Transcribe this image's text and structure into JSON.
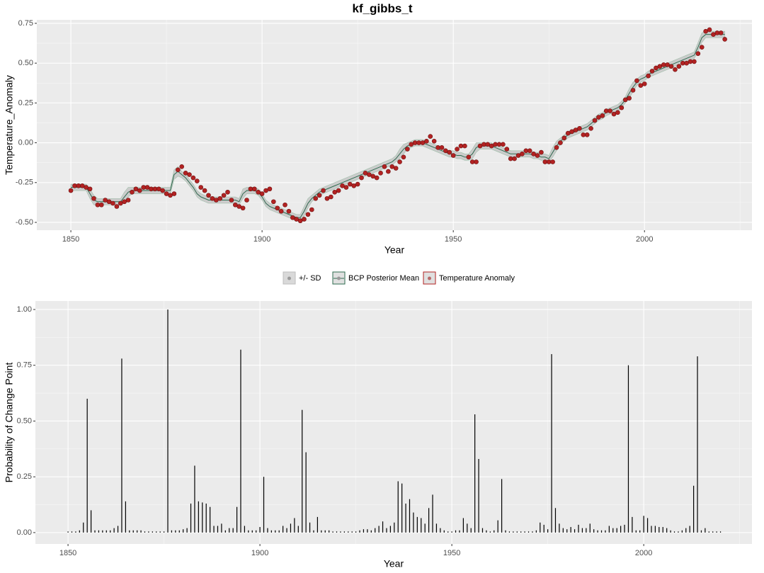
{
  "chart_data": [
    {
      "type": "line",
      "title": "kf_gibbs_t",
      "x_label": "Year",
      "y_label": "Temperature_Anomaly",
      "xlim": [
        1841.1,
        2028.1
      ],
      "xticks": [
        1850,
        1900,
        1950,
        2000
      ],
      "ylim": [
        -0.549,
        0.772
      ],
      "yticks": [
        {
          "value": -0.5,
          "label": "-0.50"
        },
        {
          "value": -0.25,
          "label": "-0.25"
        },
        {
          "value": 0,
          "label": "0.00"
        },
        {
          "value": 0.25,
          "label": "0.25"
        },
        {
          "value": 0.5,
          "label": "0.50"
        },
        {
          "value": 0.75,
          "label": "0.75"
        }
      ],
      "grid": true,
      "legend": "bottom",
      "x": [
        1850,
        1851,
        1852,
        1853,
        1854,
        1855,
        1856,
        1857,
        1858,
        1859,
        1860,
        1861,
        1862,
        1863,
        1864,
        1865,
        1866,
        1867,
        1868,
        1869,
        1870,
        1871,
        1872,
        1873,
        1874,
        1875,
        1876,
        1877,
        1878,
        1879,
        1880,
        1881,
        1882,
        1883,
        1884,
        1885,
        1886,
        1887,
        1888,
        1889,
        1890,
        1891,
        1892,
        1893,
        1894,
        1895,
        1896,
        1897,
        1898,
        1899,
        1900,
        1901,
        1902,
        1903,
        1904,
        1905,
        1906,
        1907,
        1908,
        1909,
        1910,
        1911,
        1912,
        1913,
        1914,
        1915,
        1916,
        1917,
        1918,
        1919,
        1920,
        1921,
        1922,
        1923,
        1924,
        1925,
        1926,
        1927,
        1928,
        1929,
        1930,
        1931,
        1932,
        1933,
        1934,
        1935,
        1936,
        1937,
        1938,
        1939,
        1940,
        1941,
        1942,
        1943,
        1944,
        1945,
        1946,
        1947,
        1948,
        1949,
        1950,
        1951,
        1952,
        1953,
        1954,
        1955,
        1956,
        1957,
        1958,
        1959,
        1960,
        1961,
        1962,
        1963,
        1964,
        1965,
        1966,
        1967,
        1968,
        1969,
        1970,
        1971,
        1972,
        1973,
        1974,
        1975,
        1976,
        1977,
        1978,
        1979,
        1980,
        1981,
        1982,
        1983,
        1984,
        1985,
        1986,
        1987,
        1988,
        1989,
        1990,
        1991,
        1992,
        1993,
        1994,
        1995,
        1996,
        1997,
        1998,
        1999,
        2000,
        2001,
        2002,
        2003,
        2004,
        2005,
        2006,
        2007,
        2008,
        2009,
        2010,
        2011,
        2012,
        2013,
        2014,
        2015,
        2016,
        2017,
        2018,
        2019,
        2020,
        2021
      ],
      "series": [
        {
          "name": "+/- SD",
          "color": "#bdbdbd",
          "values": [
            0.02,
            0.02,
            0.02,
            0.02,
            0.02,
            0.03,
            0.03,
            0.02,
            0.02,
            0.02,
            0.02,
            0.02,
            0.02,
            0.02,
            0.03,
            0.03,
            0.02,
            0.02,
            0.02,
            0.02,
            0.02,
            0.02,
            0.02,
            0.02,
            0.02,
            0.02,
            0.02,
            0.03,
            0.03,
            0.02,
            0.02,
            0.02,
            0.02,
            0.02,
            0.02,
            0.02,
            0.02,
            0.02,
            0.02,
            0.02,
            0.02,
            0.02,
            0.02,
            0.02,
            0.02,
            0.03,
            0.02,
            0.02,
            0.02,
            0.02,
            0.02,
            0.02,
            0.02,
            0.02,
            0.02,
            0.02,
            0.02,
            0.02,
            0.02,
            0.02,
            0.02,
            0.03,
            0.03,
            0.02,
            0.02,
            0.02,
            0.02,
            0.02,
            0.02,
            0.02,
            0.02,
            0.02,
            0.02,
            0.02,
            0.02,
            0.02,
            0.02,
            0.02,
            0.02,
            0.02,
            0.02,
            0.02,
            0.02,
            0.02,
            0.02,
            0.02,
            0.03,
            0.03,
            0.02,
            0.02,
            0.02,
            0.02,
            0.02,
            0.02,
            0.02,
            0.02,
            0.02,
            0.02,
            0.02,
            0.02,
            0.02,
            0.02,
            0.02,
            0.02,
            0.02,
            0.03,
            0.03,
            0.02,
            0.02,
            0.02,
            0.02,
            0.02,
            0.02,
            0.02,
            0.02,
            0.02,
            0.02,
            0.02,
            0.02,
            0.02,
            0.02,
            0.02,
            0.02,
            0.02,
            0.02,
            0.02,
            0.03,
            0.03,
            0.02,
            0.02,
            0.02,
            0.02,
            0.02,
            0.02,
            0.02,
            0.02,
            0.02,
            0.02,
            0.02,
            0.02,
            0.02,
            0.02,
            0.02,
            0.02,
            0.02,
            0.02,
            0.03,
            0.03,
            0.02,
            0.02,
            0.02,
            0.02,
            0.02,
            0.02,
            0.02,
            0.02,
            0.02,
            0.02,
            0.02,
            0.02,
            0.02,
            0.02,
            0.02,
            0.02,
            0.03,
            0.03,
            0.02,
            0.02,
            0.02,
            0.02,
            0.02,
            0.02
          ]
        },
        {
          "name": "BCP Posterior Mean",
          "color": "#2e6b4f",
          "values": [
            -0.28,
            -0.28,
            -0.28,
            -0.28,
            -0.28,
            -0.32,
            -0.36,
            -0.37,
            -0.37,
            -0.37,
            -0.37,
            -0.37,
            -0.37,
            -0.37,
            -0.34,
            -0.31,
            -0.3,
            -0.3,
            -0.3,
            -0.3,
            -0.3,
            -0.3,
            -0.3,
            -0.3,
            -0.3,
            -0.3,
            -0.3,
            -0.2,
            -0.18,
            -0.2,
            -0.22,
            -0.25,
            -0.28,
            -0.32,
            -0.34,
            -0.35,
            -0.36,
            -0.36,
            -0.36,
            -0.36,
            -0.36,
            -0.36,
            -0.36,
            -0.36,
            -0.37,
            -0.32,
            -0.3,
            -0.3,
            -0.3,
            -0.31,
            -0.34,
            -0.38,
            -0.4,
            -0.41,
            -0.42,
            -0.43,
            -0.44,
            -0.45,
            -0.46,
            -0.47,
            -0.47,
            -0.43,
            -0.38,
            -0.35,
            -0.33,
            -0.31,
            -0.3,
            -0.29,
            -0.28,
            -0.27,
            -0.26,
            -0.25,
            -0.24,
            -0.23,
            -0.22,
            -0.21,
            -0.2,
            -0.19,
            -0.18,
            -0.17,
            -0.16,
            -0.15,
            -0.14,
            -0.13,
            -0.12,
            -0.1,
            -0.07,
            -0.04,
            -0.02,
            -0.01,
            0,
            0,
            0,
            -0.01,
            -0.02,
            -0.03,
            -0.04,
            -0.05,
            -0.06,
            -0.07,
            -0.07,
            -0.08,
            -0.08,
            -0.09,
            -0.09,
            -0.07,
            -0.03,
            -0.02,
            -0.02,
            -0.02,
            -0.02,
            -0.03,
            -0.04,
            -0.05,
            -0.06,
            -0.07,
            -0.07,
            -0.07,
            -0.07,
            -0.07,
            -0.07,
            -0.08,
            -0.08,
            -0.09,
            -0.09,
            -0.1,
            -0.06,
            -0.02,
            0.01,
            0.03,
            0.05,
            0.06,
            0.07,
            0.08,
            0.09,
            0.1,
            0.12,
            0.14,
            0.16,
            0.17,
            0.19,
            0.2,
            0.21,
            0.22,
            0.24,
            0.27,
            0.31,
            0.35,
            0.38,
            0.4,
            0.41,
            0.43,
            0.44,
            0.45,
            0.46,
            0.47,
            0.48,
            0.49,
            0.5,
            0.51,
            0.52,
            0.53,
            0.54,
            0.55,
            0.6,
            0.66,
            0.68,
            0.68,
            0.68,
            0.68,
            0.68,
            0.68
          ]
        },
        {
          "name": "Temperature Anomaly",
          "color": "#b22222",
          "values": [
            -0.3,
            -0.27,
            -0.27,
            -0.27,
            -0.28,
            -0.29,
            -0.35,
            -0.39,
            -0.39,
            -0.36,
            -0.37,
            -0.38,
            -0.4,
            -0.38,
            -0.37,
            -0.36,
            -0.31,
            -0.29,
            -0.3,
            -0.28,
            -0.28,
            -0.29,
            -0.29,
            -0.29,
            -0.3,
            -0.32,
            -0.33,
            -0.32,
            -0.17,
            -0.15,
            -0.19,
            -0.2,
            -0.22,
            -0.24,
            -0.28,
            -0.3,
            -0.33,
            -0.35,
            -0.36,
            -0.35,
            -0.33,
            -0.31,
            -0.36,
            -0.39,
            -0.4,
            -0.41,
            -0.36,
            -0.29,
            -0.29,
            -0.31,
            -0.32,
            -0.3,
            -0.29,
            -0.37,
            -0.41,
            -0.43,
            -0.39,
            -0.43,
            -0.47,
            -0.48,
            -0.49,
            -0.48,
            -0.45,
            -0.42,
            -0.35,
            -0.33,
            -0.3,
            -0.35,
            -0.34,
            -0.31,
            -0.3,
            -0.27,
            -0.28,
            -0.26,
            -0.27,
            -0.26,
            -0.22,
            -0.19,
            -0.2,
            -0.21,
            -0.22,
            -0.19,
            -0.15,
            -0.18,
            -0.15,
            -0.16,
            -0.12,
            -0.09,
            -0.04,
            -0.01,
            0,
            0,
            0,
            0.01,
            0.04,
            0.01,
            -0.03,
            -0.03,
            -0.05,
            -0.06,
            -0.08,
            -0.04,
            -0.02,
            -0.02,
            -0.09,
            -0.12,
            -0.12,
            -0.02,
            -0.01,
            -0.01,
            -0.02,
            -0.01,
            -0.01,
            -0.01,
            -0.04,
            -0.1,
            -0.1,
            -0.08,
            -0.07,
            -0.05,
            -0.05,
            -0.07,
            -0.08,
            -0.06,
            -0.12,
            -0.12,
            -0.12,
            -0.03,
            0,
            0.03,
            0.06,
            0.07,
            0.08,
            0.09,
            0.05,
            0.05,
            0.09,
            0.14,
            0.16,
            0.17,
            0.2,
            0.2,
            0.18,
            0.19,
            0.22,
            0.27,
            0.28,
            0.33,
            0.39,
            0.36,
            0.37,
            0.42,
            0.45,
            0.47,
            0.48,
            0.49,
            0.49,
            0.48,
            0.46,
            0.48,
            0.5,
            0.5,
            0.51,
            0.51,
            0.56,
            0.6,
            0.7,
            0.71,
            0.68,
            0.69,
            0.69,
            0.65
          ]
        }
      ]
    },
    {
      "type": "bar",
      "x_label": "Year",
      "y_label": "Probability of Change Point",
      "color": "#000000",
      "xlim": [
        1841.5,
        2028.2
      ],
      "xticks": [
        1850,
        1900,
        1950,
        2000
      ],
      "ylim": [
        -0.051,
        1.038
      ],
      "yticks": [
        {
          "value": 0,
          "label": "0.00"
        },
        {
          "value": 0.25,
          "label": "0.25"
        },
        {
          "value": 0.5,
          "label": "0.50"
        },
        {
          "value": 0.75,
          "label": "0.75"
        },
        {
          "value": 1,
          "label": "1.00"
        }
      ],
      "grid": true,
      "x": [
        1850,
        1851,
        1852,
        1853,
        1854,
        1855,
        1856,
        1857,
        1858,
        1859,
        1860,
        1861,
        1862,
        1863,
        1864,
        1865,
        1866,
        1867,
        1868,
        1869,
        1870,
        1871,
        1872,
        1873,
        1874,
        1875,
        1876,
        1877,
        1878,
        1879,
        1880,
        1881,
        1882,
        1883,
        1884,
        1885,
        1886,
        1887,
        1888,
        1889,
        1890,
        1891,
        1892,
        1893,
        1894,
        1895,
        1896,
        1897,
        1898,
        1899,
        1900,
        1901,
        1902,
        1903,
        1904,
        1905,
        1906,
        1907,
        1908,
        1909,
        1910,
        1911,
        1912,
        1913,
        1914,
        1915,
        1916,
        1917,
        1918,
        1919,
        1920,
        1921,
        1922,
        1923,
        1924,
        1925,
        1926,
        1927,
        1928,
        1929,
        1930,
        1931,
        1932,
        1933,
        1934,
        1935,
        1936,
        1937,
        1938,
        1939,
        1940,
        1941,
        1942,
        1943,
        1944,
        1945,
        1946,
        1947,
        1948,
        1949,
        1950,
        1951,
        1952,
        1953,
        1954,
        1955,
        1956,
        1957,
        1958,
        1959,
        1960,
        1961,
        1962,
        1963,
        1964,
        1965,
        1966,
        1967,
        1968,
        1969,
        1970,
        1971,
        1972,
        1973,
        1974,
        1975,
        1976,
        1977,
        1978,
        1979,
        1980,
        1981,
        1982,
        1983,
        1984,
        1985,
        1986,
        1987,
        1988,
        1989,
        1990,
        1991,
        1992,
        1993,
        1994,
        1995,
        1996,
        1997,
        1998,
        1999,
        2000,
        2001,
        2002,
        2003,
        2004,
        2005,
        2006,
        2007,
        2008,
        2009,
        2010,
        2011,
        2012,
        2013,
        2014,
        2015,
        2016,
        2017,
        2018,
        2019,
        2020
      ],
      "values": [
        0.005,
        0.005,
        0.005,
        0.01,
        0.045,
        0.6,
        0.1,
        0.01,
        0.01,
        0.01,
        0.01,
        0.01,
        0.02,
        0.03,
        0.78,
        0.14,
        0.01,
        0.01,
        0.01,
        0.01,
        0.005,
        0.005,
        0.005,
        0.005,
        0.005,
        0.005,
        1.0,
        0.01,
        0.01,
        0.01,
        0.015,
        0.02,
        0.13,
        0.3,
        0.14,
        0.135,
        0.13,
        0.115,
        0.03,
        0.03,
        0.04,
        0.01,
        0.02,
        0.02,
        0.115,
        0.82,
        0.03,
        0.01,
        0.01,
        0.01,
        0.025,
        0.25,
        0.02,
        0.01,
        0.01,
        0.01,
        0.03,
        0.02,
        0.04,
        0.065,
        0.03,
        0.55,
        0.36,
        0.045,
        0.01,
        0.07,
        0.01,
        0.01,
        0.01,
        0.005,
        0.005,
        0.005,
        0.005,
        0.005,
        0.005,
        0.005,
        0.01,
        0.015,
        0.015,
        0.01,
        0.02,
        0.03,
        0.05,
        0.02,
        0.03,
        0.045,
        0.23,
        0.22,
        0.13,
        0.15,
        0.09,
        0.07,
        0.065,
        0.04,
        0.11,
        0.17,
        0.04,
        0.02,
        0.01,
        0.005,
        0.005,
        0.01,
        0.01,
        0.065,
        0.04,
        0.02,
        0.53,
        0.33,
        0.02,
        0.01,
        0.005,
        0.01,
        0.055,
        0.24,
        0.01,
        0.005,
        0.005,
        0.005,
        0.005,
        0.005,
        0.005,
        0.005,
        0.01,
        0.045,
        0.035,
        0.015,
        0.8,
        0.11,
        0.04,
        0.02,
        0.015,
        0.025,
        0.015,
        0.035,
        0.02,
        0.02,
        0.04,
        0.015,
        0.01,
        0.01,
        0.01,
        0.03,
        0.02,
        0.02,
        0.03,
        0.035,
        0.75,
        0.07,
        0.01,
        0.01,
        0.075,
        0.065,
        0.03,
        0.03,
        0.025,
        0.025,
        0.02,
        0.01,
        0.005,
        0.005,
        0.01,
        0.02,
        0.03,
        0.21,
        0.79,
        0.01,
        0.02,
        0.005,
        0.005,
        0.005,
        0.005
      ]
    }
  ]
}
